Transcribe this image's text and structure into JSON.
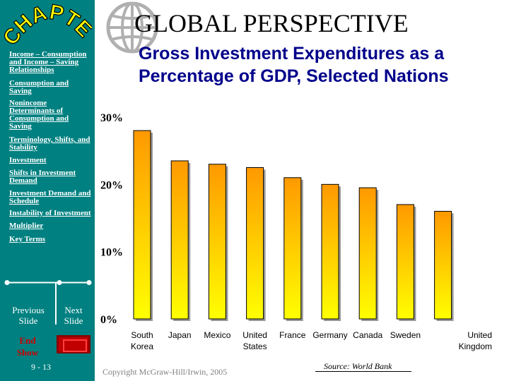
{
  "header": {
    "page_title": "GLOBAL  PERSPECTIVE",
    "chart_title_line1": "Gross Investment Expenditures as a",
    "chart_title_line2": "Percentage of GDP, Selected Nations"
  },
  "sidebar": {
    "logo_text": "CHAPTER",
    "items": [
      {
        "label": "Income – Consumption and Income – Saving Relationships"
      },
      {
        "label": "Consumption and Saving"
      },
      {
        "label": "Nonincome Determinants of Consumption and Saving"
      },
      {
        "label": "Terminology, Shifts, and Stability"
      },
      {
        "label": "Investment"
      },
      {
        "label": "Shifts in Investment Demand"
      },
      {
        "label": "Investment Demand and Schedule"
      },
      {
        "label": "Instability of Investment"
      },
      {
        "label": "Multiplier"
      },
      {
        "label": "Key Terms"
      }
    ],
    "prev_label": "Previous Slide",
    "next_label": "Next Slide",
    "end_label": "End Show",
    "slide_number": "9 - 13"
  },
  "footer": {
    "copyright": "Copyright McGraw-Hill/Irwin, 2005",
    "source": "Source: World Bank"
  },
  "colors": {
    "sidebar": "#008080",
    "title": "#00008b",
    "bar_top": "#ff9900",
    "bar_bottom": "#ffff00"
  },
  "chart_data": {
    "type": "bar",
    "title": "Gross Investment Expenditures as a Percentage of GDP, Selected Nations",
    "categories": [
      "South Korea",
      "Japan",
      "Mexico",
      "United States",
      "France",
      "Germany",
      "Canada",
      "Sweden",
      "United Kingdom"
    ],
    "category_lines": [
      [
        "South",
        "Korea"
      ],
      [
        "Japan"
      ],
      [
        "Mexico"
      ],
      [
        "United",
        "States"
      ],
      [
        "France"
      ],
      [
        "Germany"
      ],
      [
        "Canada"
      ],
      [
        "Sweden"
      ],
      [
        "United",
        "Kingdom"
      ]
    ],
    "values": [
      28,
      23.5,
      23,
      22.5,
      21,
      20,
      19.5,
      17,
      16
    ],
    "yticks": [
      "30%",
      "20%",
      "10%",
      "0%"
    ],
    "ytick_values": [
      30,
      20,
      10,
      0
    ],
    "ylim": [
      0,
      30
    ],
    "xlabel": "",
    "ylabel": ""
  }
}
